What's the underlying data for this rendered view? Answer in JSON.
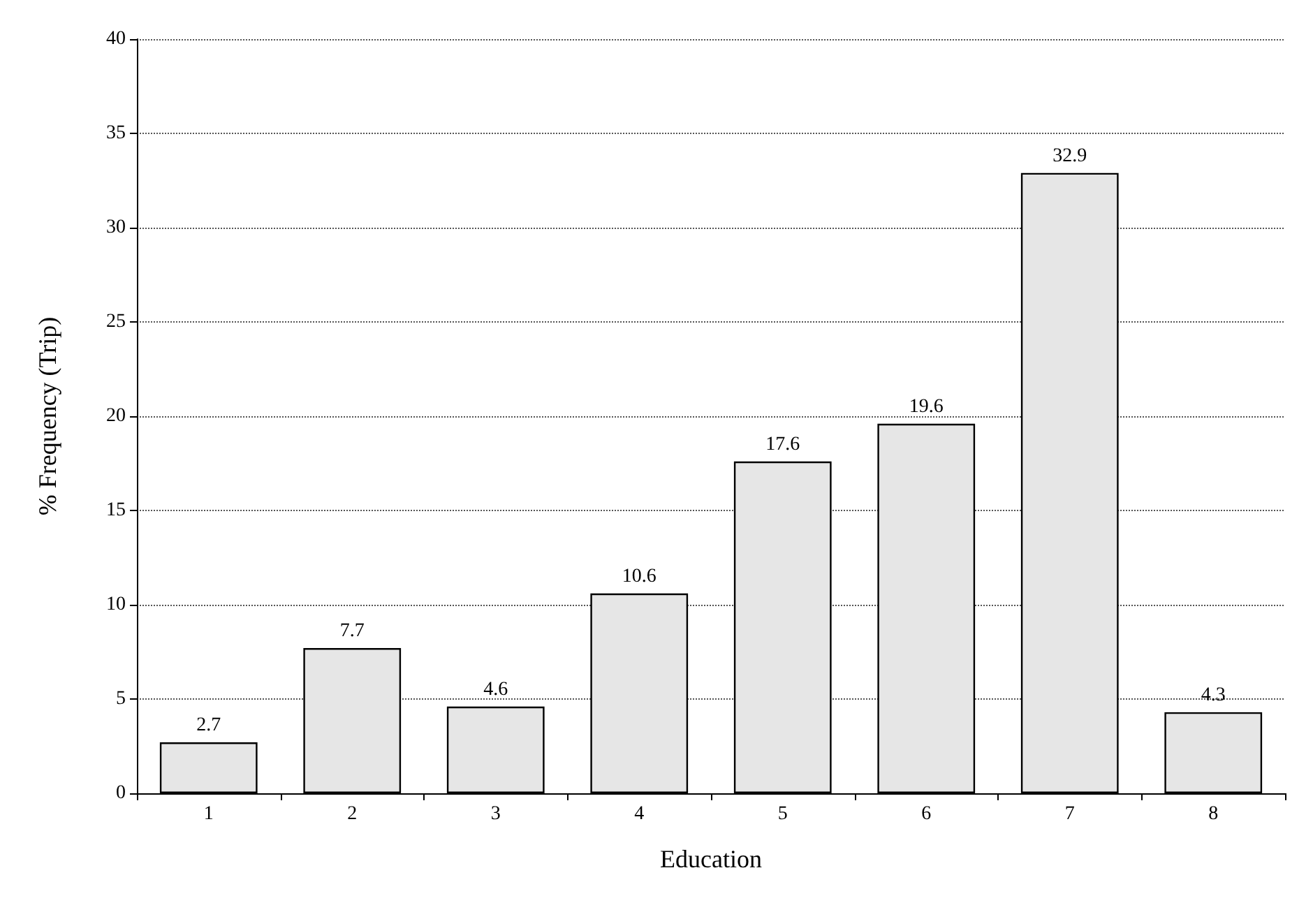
{
  "chart_data": {
    "type": "bar",
    "xlabel": "Education",
    "ylabel": "% Frequency (Trip)",
    "categories": [
      "1",
      "2",
      "3",
      "4",
      "5",
      "6",
      "7",
      "8"
    ],
    "values": [
      2.7,
      7.7,
      4.6,
      10.6,
      17.6,
      19.6,
      32.9,
      4.3
    ],
    "color": "#e6e6e6",
    "data_labels": true,
    "ylim": [
      0,
      40
    ],
    "yticks": [
      0,
      5,
      10,
      15,
      20,
      25,
      30,
      35,
      40
    ],
    "grid": "y",
    "line_style": "dotted"
  }
}
